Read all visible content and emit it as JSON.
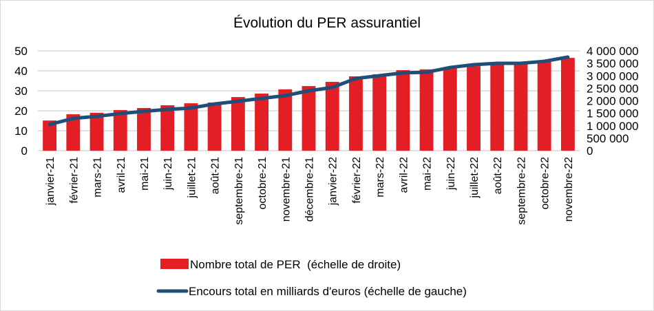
{
  "chart_data": {
    "type": "bar",
    "title": "Évolution du PER assurantiel",
    "xlabel": "",
    "categories": [
      "janvier-21",
      "février-21",
      "mars-21",
      "avril-21",
      "mai-21",
      "juin-21",
      "juillet-21",
      "août-21",
      "septembre-21",
      "octobre-21",
      "novembre-21",
      "décembre-21",
      "janvier-22",
      "février-22",
      "mars-22",
      "avril-22",
      "mai-22",
      "juin-22",
      "juillet-22",
      "août-22",
      "septembre-22",
      "octobre-22",
      "novembre-22"
    ],
    "series": [
      {
        "name": "Nombre total de PER  (échelle de droite)",
        "type": "bar",
        "axis": "right",
        "color": "#e31e24",
        "values": [
          1210000,
          1460000,
          1520000,
          1630000,
          1710000,
          1820000,
          1900000,
          1930000,
          2150000,
          2290000,
          2460000,
          2590000,
          2760000,
          2980000,
          3060000,
          3230000,
          3260000,
          3310000,
          3390000,
          3450000,
          3480000,
          3560000,
          3720000
        ]
      },
      {
        "name": "Encours total en milliards d'euros (échelle de gauche)",
        "type": "line",
        "axis": "left",
        "color": "#1f4e79",
        "values": [
          13.1,
          16.2,
          17.2,
          18.6,
          19.7,
          20.7,
          21.4,
          23.4,
          24.8,
          26.2,
          27.6,
          30.0,
          31.7,
          36.2,
          37.6,
          39.0,
          39.3,
          41.7,
          43.1,
          43.8,
          43.8,
          44.8,
          46.9
        ]
      }
    ],
    "y_left": {
      "ylim": [
        0,
        50
      ],
      "ticks": [
        "0",
        "10",
        "20",
        "30",
        "40",
        "50"
      ]
    },
    "y_right": {
      "ylim": [
        0,
        4000000
      ],
      "ticks": [
        "0",
        "500 000",
        "1 000 000",
        "1 500 000",
        "2 000 000",
        "2 500 000",
        "3 000 000",
        "3 500 000",
        "4 000 000"
      ]
    },
    "grid": true,
    "legend_position": "bottom"
  }
}
